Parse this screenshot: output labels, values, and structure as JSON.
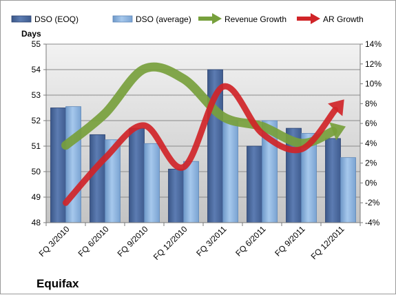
{
  "chart_data": {
    "type": "bar",
    "categories": [
      "FQ 3/2010",
      "FQ 6/2010",
      "FQ 9/2010",
      "FQ 12/2010",
      "FQ 3/2011",
      "FQ 6/2011",
      "FQ 9/2011",
      "FQ 12/2011"
    ],
    "series": [
      {
        "name": "DSO (EOQ)",
        "type": "bar",
        "axis": "left",
        "color": "#4f6fa5",
        "values": [
          52.5,
          51.45,
          51.7,
          50.1,
          54.0,
          51.0,
          51.7,
          51.3
        ]
      },
      {
        "name": "DSO (average)",
        "type": "bar",
        "axis": "left",
        "color": "#8cb4e0",
        "values": [
          52.55,
          51.25,
          51.1,
          50.4,
          52.0,
          52.0,
          51.5,
          50.55
        ]
      },
      {
        "name": "Revenue Growth",
        "type": "line",
        "axis": "right",
        "color": "#77a03c",
        "values": [
          0.038,
          0.07,
          0.115,
          0.105,
          0.067,
          0.057,
          0.04,
          0.055
        ]
      },
      {
        "name": "AR Growth",
        "type": "line",
        "axis": "right",
        "color": "#d02428",
        "values": [
          -0.02,
          0.025,
          0.058,
          0.016,
          0.097,
          0.05,
          0.034,
          0.08
        ]
      }
    ],
    "ylabel": "Days",
    "ylim": [
      48,
      55
    ],
    "yticks": [
      48,
      49,
      50,
      51,
      52,
      53,
      54,
      55
    ],
    "y2lim": [
      -0.04,
      0.14
    ],
    "y2ticks": [
      "-4%",
      "-2%",
      "0%",
      "2%",
      "4%",
      "6%",
      "8%",
      "10%",
      "12%",
      "14%"
    ],
    "legend_position": "top",
    "grid": true
  },
  "company": "Equifax"
}
